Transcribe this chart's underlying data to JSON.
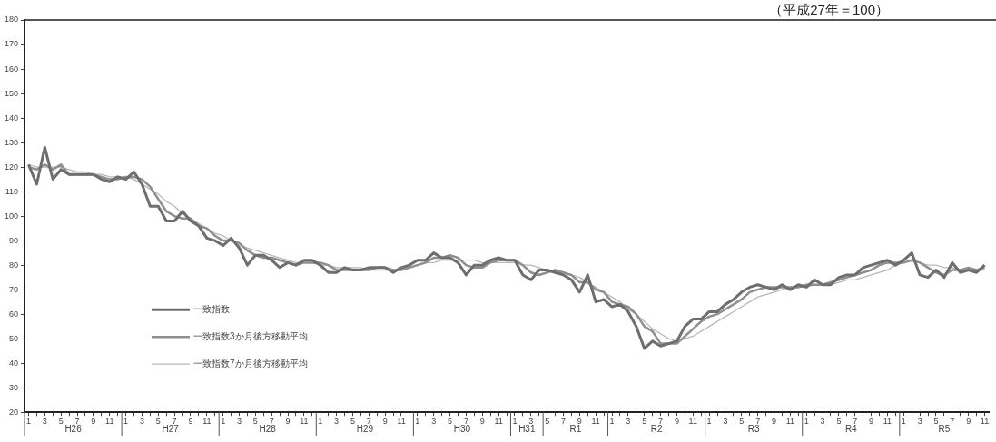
{
  "chart_data": {
    "type": "line",
    "annotations": [
      "（平成27年＝100）",
      "H26",
      "H27",
      "H28",
      "H29",
      "H30",
      "H31",
      "R1",
      "R2",
      "R3",
      "R4",
      "R5"
    ],
    "categories": [
      "1",
      null,
      "3",
      null,
      "5",
      null,
      "7",
      null,
      "9",
      null,
      "11",
      null,
      "1",
      null,
      "3",
      null,
      "5",
      null,
      "7",
      null,
      "9",
      null,
      "11",
      null,
      "1",
      null,
      "3",
      null,
      "5",
      null,
      "7",
      null,
      "9",
      null,
      "11",
      null,
      "1",
      null,
      "3",
      null,
      "5",
      null,
      "7",
      null,
      "9",
      null,
      "11",
      null,
      "1",
      null,
      "3",
      null,
      "5",
      null,
      "7",
      null,
      "9",
      null,
      "11",
      null,
      "1",
      null,
      "3",
      null,
      "5",
      null,
      "7",
      null,
      "9",
      null,
      "11",
      null,
      "1",
      null,
      "3",
      null,
      "5",
      null,
      "7",
      null,
      "9",
      null,
      "11",
      null,
      "1",
      null,
      "3",
      null,
      "5",
      null,
      "7",
      null,
      "9",
      null,
      "11",
      null,
      "1",
      null,
      "3",
      null,
      "5",
      null,
      "7",
      null,
      "9",
      null,
      "11",
      null,
      "1",
      null,
      "3",
      null,
      "5",
      null,
      "7",
      null,
      "9",
      null,
      "11"
    ],
    "series": [
      {
        "name": "一致指数",
        "color": "#6e6e6e",
        "values": [
          121,
          113,
          128,
          115,
          119,
          117,
          117,
          117,
          117,
          115,
          114,
          116,
          115,
          118,
          113,
          104,
          104,
          98,
          98,
          102,
          98,
          96,
          91,
          90,
          88,
          91,
          87,
          80,
          84,
          84,
          82,
          79,
          81,
          80,
          82,
          82,
          80,
          77,
          77,
          79,
          78,
          78,
          79,
          79,
          79,
          77,
          79,
          80,
          82,
          82,
          85,
          83,
          83,
          81,
          76,
          80,
          80,
          82,
          83,
          82,
          82,
          76,
          74,
          78,
          78,
          77,
          76,
          74,
          69,
          76,
          65,
          66,
          63,
          64,
          61,
          55,
          46,
          49,
          47,
          48,
          49,
          55,
          58,
          58,
          61,
          61,
          64,
          66,
          69,
          71,
          72,
          71,
          70,
          72,
          70,
          72,
          71,
          74,
          72,
          72,
          75,
          76,
          76,
          79,
          80,
          81,
          82,
          80,
          82,
          85,
          76,
          75,
          78,
          75,
          81,
          77,
          78,
          77,
          80
        ]
      },
      {
        "name": "一致指数3か月後方移動平均",
        "color": "#8f8f8f",
        "values": [
          120,
          119,
          121,
          119,
          121,
          117,
          117,
          117,
          117,
          116,
          115,
          115,
          116,
          116,
          115,
          112,
          107,
          102,
          100,
          99,
          99,
          96,
          95,
          92,
          90,
          90,
          89,
          86,
          84,
          83,
          83,
          82,
          81,
          80,
          81,
          81,
          81,
          80,
          78,
          78,
          78,
          78,
          78,
          79,
          79,
          78,
          78,
          79,
          80,
          81,
          83,
          83,
          84,
          83,
          80,
          79,
          79,
          81,
          82,
          82,
          82,
          80,
          77,
          76,
          77,
          78,
          77,
          76,
          73,
          73,
          70,
          69,
          65,
          64,
          63,
          60,
          55,
          53,
          48,
          48,
          48,
          51,
          54,
          57,
          59,
          60,
          62,
          64,
          66,
          69,
          70,
          71,
          71,
          71,
          71,
          71,
          72,
          72,
          72,
          73,
          74,
          75,
          76,
          77,
          78,
          80,
          81,
          81,
          81,
          82,
          81,
          79,
          77,
          76,
          78,
          78,
          79,
          78,
          79
        ]
      },
      {
        "name": "一致指数7か月後方移動平均",
        "color": "#b8b8b8",
        "values": [
          121,
          120,
          120,
          120,
          120,
          119,
          118,
          118,
          117,
          117,
          116,
          116,
          116,
          115,
          113,
          111,
          109,
          106,
          104,
          101,
          99,
          97,
          95,
          93,
          92,
          90,
          88,
          87,
          86,
          85,
          84,
          83,
          82,
          81,
          81,
          81,
          80,
          80,
          79,
          79,
          79,
          79,
          78,
          78,
          78,
          78,
          79,
          79,
          80,
          81,
          81,
          82,
          82,
          82,
          82,
          82,
          81,
          81,
          81,
          81,
          81,
          80,
          80,
          79,
          78,
          78,
          77,
          76,
          75,
          73,
          71,
          69,
          67,
          65,
          62,
          60,
          57,
          54,
          52,
          50,
          49,
          50,
          51,
          53,
          55,
          57,
          59,
          61,
          63,
          65,
          67,
          68,
          69,
          70,
          71,
          71,
          71,
          72,
          72,
          72,
          73,
          74,
          74,
          75,
          76,
          77,
          78,
          80,
          81,
          82,
          81,
          80,
          80,
          79,
          79,
          78,
          78,
          78,
          78
        ]
      }
    ],
    "ylim": [
      20,
      180
    ],
    "yticks": [
      20,
      30,
      40,
      50,
      60,
      70,
      80,
      90,
      100,
      110,
      120,
      130,
      140,
      150,
      160,
      170,
      180
    ],
    "grid": false,
    "legend": "bottom left",
    "marker": "none",
    "line_style": "solid"
  }
}
